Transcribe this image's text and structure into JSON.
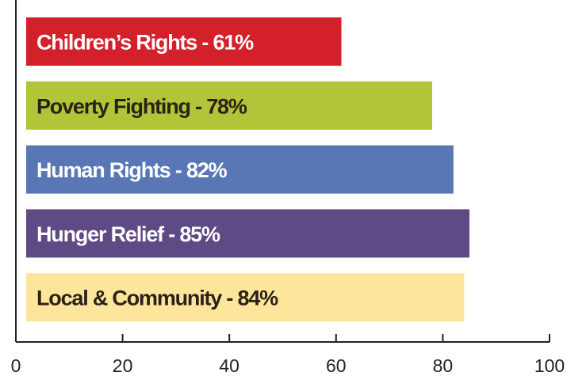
{
  "chart_data": {
    "type": "bar",
    "orientation": "horizontal",
    "value_labels": [
      "Children’s Rights - 61%",
      "Poverty Fighting - 78%",
      "Human Rights - 82%",
      "Hunger Relief - 85%",
      "Local & Community - 84%"
    ],
    "values": [
      61,
      78,
      82,
      85,
      84
    ],
    "colors": [
      "#d4202a",
      "#b2c437",
      "#5877b4",
      "#5e4a85",
      "#fde69b"
    ],
    "label_colors": [
      "#ffffff",
      "#2b2118",
      "#ffffff",
      "#ffffff",
      "#2b2118"
    ],
    "xlim": [
      0,
      100
    ],
    "xticks": [
      0,
      20,
      40,
      60,
      80,
      100
    ],
    "grid": false
  }
}
